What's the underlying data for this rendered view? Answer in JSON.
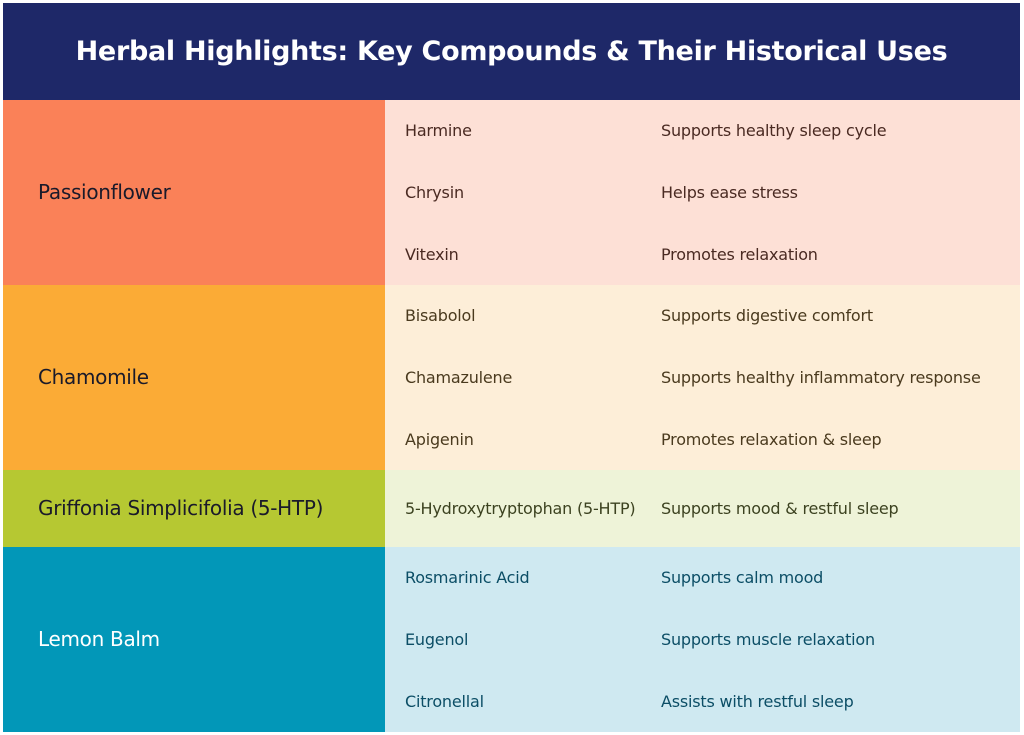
{
  "title": "Herbal Highlights: Key Compounds & Their Historical Uses",
  "colors": {
    "header_bg": "#1e2868",
    "header_text": "#ffffff"
  },
  "groups": [
    {
      "herb": "Passionflower",
      "herb_bg": "#fa8158",
      "herb_text": "#1a1a2a",
      "rows_bg": "#fde0d6",
      "rows_text": "#4a2a22",
      "rows": [
        {
          "compound": "Harmine",
          "use": "Supports healthy sleep cycle"
        },
        {
          "compound": "Chrysin",
          "use": "Helps ease stress"
        },
        {
          "compound": "Vitexin",
          "use": "Promotes relaxation"
        }
      ]
    },
    {
      "herb": "Chamomile",
      "herb_bg": "#fbab36",
      "herb_text": "#1a1a2a",
      "rows_bg": "#fdeed8",
      "rows_text": "#4a3a1e",
      "rows": [
        {
          "compound": "Bisabolol",
          "use": "Supports digestive comfort"
        },
        {
          "compound": "Chamazulene",
          "use": "Supports healthy inflammatory response"
        },
        {
          "compound": "Apigenin",
          "use": "Promotes relaxation & sleep"
        }
      ]
    },
    {
      "herb": "Griffonia Simplicifolia (5-HTP)",
      "herb_bg": "#b6c832",
      "herb_text": "#1a1a2a",
      "rows_bg": "#eef3d8",
      "rows_text": "#3c4220",
      "rows": [
        {
          "compound": "5-Hydroxytryptophan (5-HTP)",
          "use": "Supports mood & restful sleep"
        }
      ]
    },
    {
      "herb": "Lemon Balm",
      "herb_bg": "#0297b8",
      "herb_text": "#ffffff",
      "rows_bg": "#cfe9f1",
      "rows_text": "#0c4e66",
      "rows": [
        {
          "compound": "Rosmarinic Acid",
          "use": "Supports calm mood"
        },
        {
          "compound": "Eugenol",
          "use": "Supports muscle relaxation"
        },
        {
          "compound": "Citronellal",
          "use": "Assists with restful sleep"
        }
      ]
    }
  ]
}
